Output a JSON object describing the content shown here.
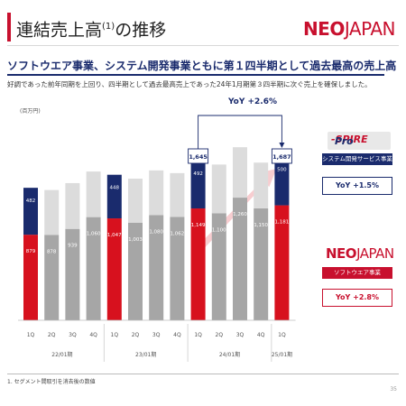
{
  "header": {
    "title": "連結売上高",
    "title_sup": "(1)",
    "title_suffix": "の推移",
    "logo_neo": "NEO",
    "logo_jp": "JAPAN"
  },
  "headline": "ソフトウエア事業、システム開発事業ともに第１四半期として過去最高の売上高",
  "subtext": "好調であった前年同期を上回り、四半期として過去最高売上であった24年1月期第３四半期に次ぐ売上を確保しました。",
  "unit_label": "(百万円)",
  "yoy_total": "YoY +2.6%",
  "prospire": {
    "logo_a": "Pro",
    "logo_b": "-SPIRE",
    "tag": "システム開発サービス事業",
    "yoy": "YoY +1.5%"
  },
  "neojapan": {
    "logo_neo": "NEO",
    "logo_jp": "JAPAN",
    "tag": "ソフトウエア事業",
    "yoy": "YoY +2.8%"
  },
  "footnote": "1.  セグメント間取引を消去後の数値",
  "page_number": "35",
  "colors": {
    "red": "#d7111e",
    "navy": "#1a2b6d",
    "gray_dark": "#a6a6a6",
    "gray_light": "#dcdcdc"
  },
  "chart_data": {
    "type": "bar",
    "stacked": true,
    "categories": [
      "1Q",
      "2Q",
      "3Q",
      "4Q",
      "1Q",
      "2Q",
      "3Q",
      "4Q",
      "1Q",
      "2Q",
      "3Q",
      "4Q",
      "1Q"
    ],
    "period_groups": [
      {
        "label": "22/01期",
        "count": 4
      },
      {
        "label": "23/01期",
        "count": 4
      },
      {
        "label": "24/01期",
        "count": 4
      },
      {
        "label": "25/01期",
        "count": 1
      }
    ],
    "series": [
      {
        "name": "ソフトウエア事業",
        "values": [
          879,
          878,
          939,
          1060,
          1047,
          1003,
          1080,
          1062,
          1149,
          1100,
          1260,
          1150,
          1181
        ],
        "labels": [
          "879",
          "878",
          "939",
          "1,060",
          "1,047",
          "1,003",
          "1,080",
          "1,062",
          "1,149",
          "1,100",
          "1,260",
          "1,150",
          "1,181"
        ]
      },
      {
        "name": "システム開発サービス事業",
        "values": [
          482,
          460,
          470,
          468,
          448,
          452,
          460,
          450,
          492,
          500,
          518,
          470,
          500
        ],
        "labels": [
          "482",
          "",
          "",
          "",
          "448",
          "",
          "",
          "",
          "492",
          "",
          "",
          "",
          "500"
        ]
      }
    ],
    "highlight_indices": [
      0,
      4,
      8,
      12
    ],
    "total_callouts": [
      {
        "index": 8,
        "label": "1,645"
      },
      {
        "index": 12,
        "label": "1,687"
      }
    ],
    "ylim": [
      0,
      1900
    ]
  }
}
